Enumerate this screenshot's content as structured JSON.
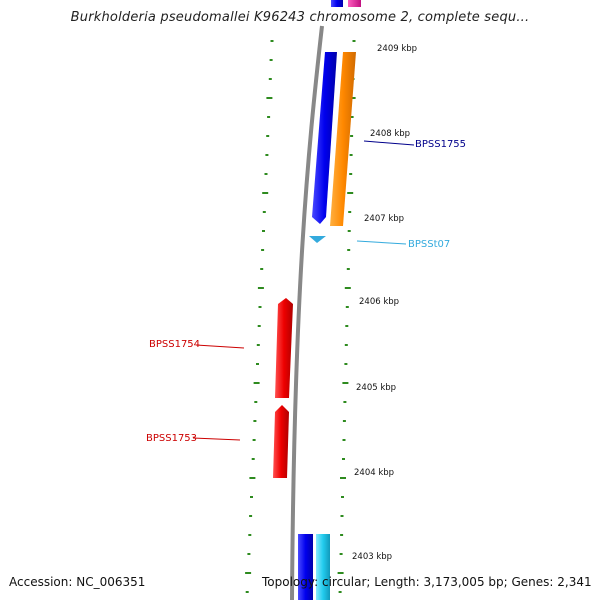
{
  "title": "Burkholderia pseudomallei K96243 chromosome 2, complete sequ...",
  "footer": {
    "accession": "Accession: NC_006351",
    "topology": "Topology: circular; Length: 3,173,005 bp; Genes: 2,341"
  },
  "ticks": [
    "2409 kbp",
    "2408 kbp",
    "2407 kbp",
    "2406 kbp",
    "2405 kbp",
    "2404 kbp",
    "2403 kbp"
  ],
  "gene_labels": [
    {
      "name": "BPSS1755",
      "color": "#00008b"
    },
    {
      "name": "BPSSt07",
      "color": "#33aadd"
    },
    {
      "name": "BPSS1754",
      "color": "#cc0000"
    },
    {
      "name": "BPSS1753",
      "color": "#cc0000"
    }
  ],
  "colors": {
    "backbone": "#888888",
    "gc_skew": "#2e8b1f",
    "forward_cds": "#0000ee",
    "reverse_cds": "#ff8800",
    "trna": "#33aadd",
    "reverse_strand_cds": "#ee0000",
    "rrna_pink": "#e0209a"
  }
}
